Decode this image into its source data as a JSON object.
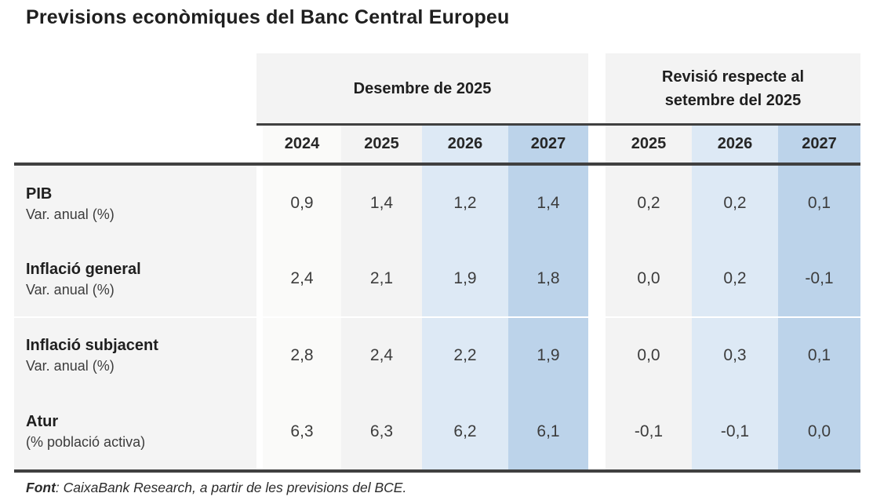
{
  "ui": {
    "title": "Previsions econòmiques del Banc Central Europeu",
    "group1": {
      "label": "Desembre de 2025",
      "years": [
        "2024",
        "2025",
        "2026",
        "2027"
      ]
    },
    "group2": {
      "label": "Revisió respecte al setembre del 2025",
      "years": [
        "2025",
        "2026",
        "2027"
      ]
    },
    "rows": [
      {
        "name": "PIB",
        "sub": "Var. anual (%)",
        "dec": [
          "0,9",
          "1,4",
          "1,2",
          "1,4"
        ],
        "rev": [
          "0,2",
          "0,2",
          "0,1"
        ]
      },
      {
        "name": "Inflació general",
        "sub": "Var. anual (%)",
        "dec": [
          "2,4",
          "2,1",
          "1,9",
          "1,8"
        ],
        "rev": [
          "0,0",
          "0,2",
          "-0,1"
        ]
      },
      {
        "name": "Inflació subjacent",
        "sub": "Var. anual (%)",
        "dec": [
          "2,8",
          "2,4",
          "2,2",
          "1,9"
        ],
        "rev": [
          "0,0",
          "0,3",
          "0,1"
        ]
      },
      {
        "name": "Atur",
        "sub": "(% població activa)",
        "dec": [
          "6,3",
          "6,3",
          "6,2",
          "6,1"
        ],
        "rev": [
          "-0,1",
          "-0,1",
          "0,0"
        ]
      }
    ],
    "footer": {
      "label": "Font",
      "text": ": CaixaBank Research, a partir de les previsions del BCE."
    },
    "colors": {
      "col_2024": "#fafaf9",
      "col_2025": "#f3f3f3",
      "col_2026": "#dde9f5",
      "col_2027": "#bcd3ea",
      "label_column": "#f4f4f4",
      "header_band": "#f3f3f3",
      "rule": "#404040"
    }
  },
  "chart_data": {
    "type": "table",
    "title": "Previsions econòmiques del Banc Central Europeu",
    "column_groups": [
      {
        "label": "Desembre de 2025",
        "columns": [
          "2024",
          "2025",
          "2026",
          "2027"
        ]
      },
      {
        "label": "Revisió respecte al setembre del 2025",
        "columns": [
          "2025",
          "2026",
          "2027"
        ]
      }
    ],
    "rows": [
      {
        "label": "PIB",
        "unit": "Var. anual (%)",
        "desembre_2025": [
          0.9,
          1.4,
          1.2,
          1.4
        ],
        "revisio_setembre_2025": [
          0.2,
          0.2,
          0.1
        ]
      },
      {
        "label": "Inflació general",
        "unit": "Var. anual (%)",
        "desembre_2025": [
          2.4,
          2.1,
          1.9,
          1.8
        ],
        "revisio_setembre_2025": [
          0.0,
          0.2,
          -0.1
        ]
      },
      {
        "label": "Inflació subjacent",
        "unit": "Var. anual (%)",
        "desembre_2025": [
          2.8,
          2.4,
          2.2,
          1.9
        ],
        "revisio_setembre_2025": [
          0.0,
          0.3,
          0.1
        ]
      },
      {
        "label": "Atur",
        "unit": "(% població activa)",
        "desembre_2025": [
          6.3,
          6.3,
          6.2,
          6.1
        ],
        "revisio_setembre_2025": [
          -0.1,
          -0.1,
          0.0
        ]
      }
    ],
    "source": "Font: CaixaBank Research, a partir de les previsions del BCE.",
    "decimal_separator": ","
  }
}
